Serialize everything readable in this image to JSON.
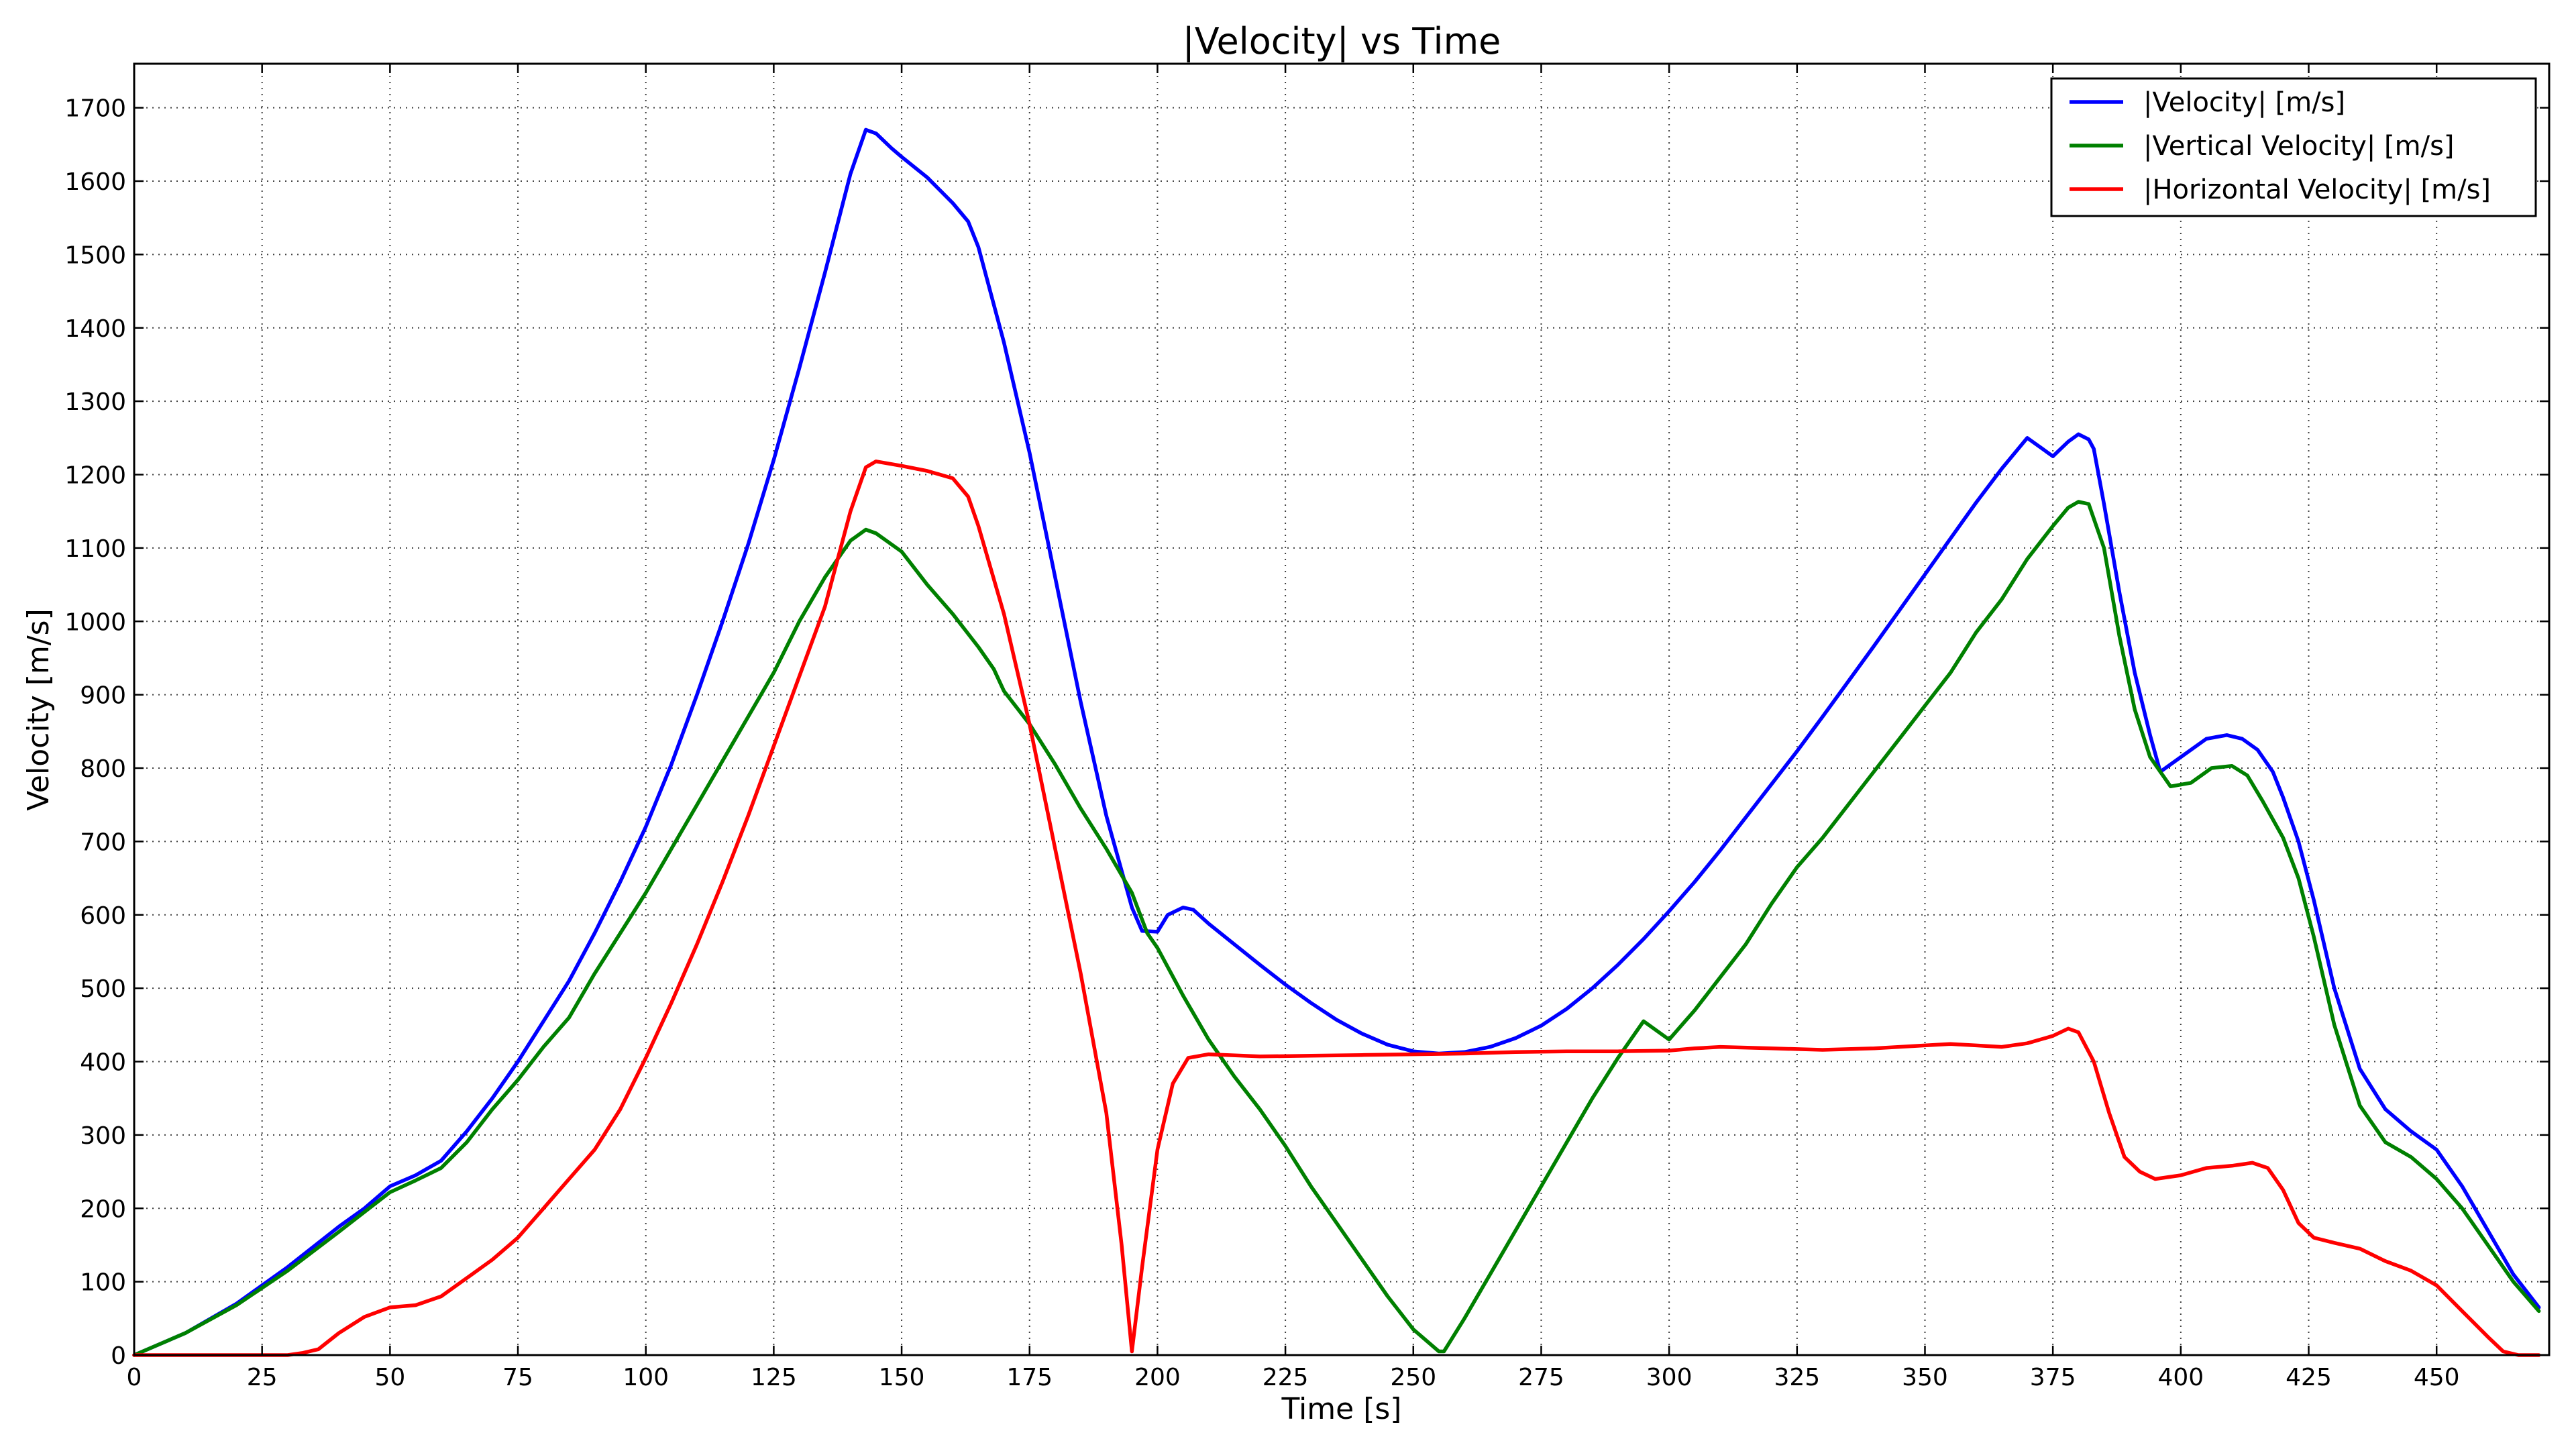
{
  "chart_data": {
    "type": "line",
    "title": "|Velocity| vs Time",
    "xlabel": "Time [s]",
    "ylabel": "Velocity [m/s]",
    "xlim": [
      0,
      472
    ],
    "ylim": [
      0,
      1760
    ],
    "xticks": [
      0,
      25,
      50,
      75,
      100,
      125,
      150,
      175,
      200,
      225,
      250,
      275,
      300,
      325,
      350,
      375,
      400,
      425,
      450
    ],
    "yticks": [
      0,
      100,
      200,
      300,
      400,
      500,
      600,
      700,
      800,
      900,
      1000,
      1100,
      1200,
      1300,
      1400,
      1500,
      1600,
      1700
    ],
    "grid": true,
    "legend_position": "top-right",
    "series": [
      {
        "name": "|Velocity| [m/s]",
        "color": "#0000ff",
        "points": [
          [
            0,
            0
          ],
          [
            10,
            30
          ],
          [
            20,
            70
          ],
          [
            30,
            120
          ],
          [
            40,
            175
          ],
          [
            45,
            200
          ],
          [
            50,
            230
          ],
          [
            55,
            245
          ],
          [
            60,
            265
          ],
          [
            65,
            305
          ],
          [
            70,
            350
          ],
          [
            75,
            400
          ],
          [
            80,
            455
          ],
          [
            85,
            510
          ],
          [
            90,
            575
          ],
          [
            95,
            645
          ],
          [
            100,
            720
          ],
          [
            105,
            805
          ],
          [
            110,
            900
          ],
          [
            115,
            1000
          ],
          [
            120,
            1105
          ],
          [
            125,
            1220
          ],
          [
            130,
            1345
          ],
          [
            135,
            1475
          ],
          [
            140,
            1610
          ],
          [
            143,
            1670
          ],
          [
            145,
            1665
          ],
          [
            148,
            1645
          ],
          [
            150,
            1633
          ],
          [
            155,
            1605
          ],
          [
            160,
            1570
          ],
          [
            163,
            1545
          ],
          [
            165,
            1510
          ],
          [
            170,
            1380
          ],
          [
            175,
            1230
          ],
          [
            180,
            1060
          ],
          [
            185,
            890
          ],
          [
            190,
            735
          ],
          [
            195,
            610
          ],
          [
            197,
            578
          ],
          [
            200,
            577
          ],
          [
            202,
            600
          ],
          [
            205,
            610
          ],
          [
            207,
            607
          ],
          [
            210,
            588
          ],
          [
            215,
            560
          ],
          [
            220,
            532
          ],
          [
            225,
            505
          ],
          [
            230,
            480
          ],
          [
            235,
            457
          ],
          [
            240,
            438
          ],
          [
            245,
            423
          ],
          [
            250,
            414
          ],
          [
            255,
            411
          ],
          [
            260,
            413
          ],
          [
            265,
            420
          ],
          [
            270,
            432
          ],
          [
            275,
            449
          ],
          [
            280,
            472
          ],
          [
            285,
            500
          ],
          [
            290,
            532
          ],
          [
            295,
            567
          ],
          [
            300,
            605
          ],
          [
            305,
            645
          ],
          [
            310,
            688
          ],
          [
            315,
            733
          ],
          [
            320,
            778
          ],
          [
            325,
            823
          ],
          [
            330,
            870
          ],
          [
            335,
            918
          ],
          [
            340,
            966
          ],
          [
            345,
            1015
          ],
          [
            350,
            1064
          ],
          [
            355,
            1113
          ],
          [
            360,
            1162
          ],
          [
            365,
            1208
          ],
          [
            370,
            1250
          ],
          [
            375,
            1225
          ],
          [
            378,
            1245
          ],
          [
            380,
            1255
          ],
          [
            382,
            1248
          ],
          [
            383,
            1235
          ],
          [
            385,
            1160
          ],
          [
            388,
            1040
          ],
          [
            391,
            930
          ],
          [
            394,
            845
          ],
          [
            396,
            795
          ],
          [
            400,
            815
          ],
          [
            405,
            840
          ],
          [
            409,
            845
          ],
          [
            412,
            840
          ],
          [
            415,
            825
          ],
          [
            418,
            795
          ],
          [
            420,
            760
          ],
          [
            423,
            700
          ],
          [
            426,
            620
          ],
          [
            430,
            500
          ],
          [
            435,
            390
          ],
          [
            440,
            335
          ],
          [
            445,
            305
          ],
          [
            450,
            280
          ],
          [
            455,
            230
          ],
          [
            460,
            170
          ],
          [
            465,
            110
          ],
          [
            470,
            65
          ]
        ]
      },
      {
        "name": "|Vertical Velocity| [m/s]",
        "color": "#008000",
        "points": [
          [
            0,
            0
          ],
          [
            10,
            30
          ],
          [
            20,
            68
          ],
          [
            30,
            115
          ],
          [
            40,
            168
          ],
          [
            45,
            195
          ],
          [
            50,
            222
          ],
          [
            55,
            238
          ],
          [
            60,
            255
          ],
          [
            65,
            290
          ],
          [
            70,
            335
          ],
          [
            75,
            375
          ],
          [
            80,
            420
          ],
          [
            85,
            460
          ],
          [
            90,
            520
          ],
          [
            95,
            575
          ],
          [
            100,
            630
          ],
          [
            105,
            690
          ],
          [
            110,
            750
          ],
          [
            115,
            810
          ],
          [
            120,
            870
          ],
          [
            125,
            930
          ],
          [
            130,
            1000
          ],
          [
            135,
            1060
          ],
          [
            140,
            1110
          ],
          [
            143,
            1125
          ],
          [
            145,
            1120
          ],
          [
            150,
            1095
          ],
          [
            155,
            1050
          ],
          [
            160,
            1010
          ],
          [
            165,
            965
          ],
          [
            168,
            935
          ],
          [
            170,
            905
          ],
          [
            175,
            860
          ],
          [
            180,
            805
          ],
          [
            185,
            745
          ],
          [
            190,
            690
          ],
          [
            195,
            630
          ],
          [
            198,
            575
          ],
          [
            200,
            555
          ],
          [
            205,
            490
          ],
          [
            210,
            430
          ],
          [
            215,
            380
          ],
          [
            220,
            335
          ],
          [
            225,
            285
          ],
          [
            230,
            230
          ],
          [
            235,
            180
          ],
          [
            240,
            130
          ],
          [
            245,
            80
          ],
          [
            250,
            35
          ],
          [
            255,
            5
          ],
          [
            256,
            5
          ],
          [
            260,
            50
          ],
          [
            265,
            110
          ],
          [
            270,
            170
          ],
          [
            275,
            230
          ],
          [
            280,
            290
          ],
          [
            285,
            350
          ],
          [
            290,
            405
          ],
          [
            295,
            455
          ],
          [
            300,
            430
          ],
          [
            305,
            470
          ],
          [
            310,
            515
          ],
          [
            315,
            560
          ],
          [
            320,
            615
          ],
          [
            325,
            665
          ],
          [
            330,
            705
          ],
          [
            335,
            750
          ],
          [
            340,
            795
          ],
          [
            345,
            840
          ],
          [
            350,
            885
          ],
          [
            355,
            930
          ],
          [
            360,
            985
          ],
          [
            365,
            1030
          ],
          [
            370,
            1085
          ],
          [
            375,
            1130
          ],
          [
            378,
            1155
          ],
          [
            380,
            1163
          ],
          [
            382,
            1160
          ],
          [
            385,
            1100
          ],
          [
            388,
            980
          ],
          [
            391,
            880
          ],
          [
            394,
            815
          ],
          [
            398,
            775
          ],
          [
            402,
            780
          ],
          [
            406,
            800
          ],
          [
            410,
            803
          ],
          [
            413,
            790
          ],
          [
            416,
            755
          ],
          [
            420,
            705
          ],
          [
            423,
            650
          ],
          [
            426,
            570
          ],
          [
            430,
            450
          ],
          [
            435,
            340
          ],
          [
            440,
            290
          ],
          [
            445,
            270
          ],
          [
            450,
            240
          ],
          [
            455,
            200
          ],
          [
            460,
            150
          ],
          [
            465,
            100
          ],
          [
            470,
            60
          ]
        ]
      },
      {
        "name": "|Horizontal Velocity| [m/s]",
        "color": "#ff0000",
        "points": [
          [
            0,
            0
          ],
          [
            10,
            0
          ],
          [
            20,
            0
          ],
          [
            30,
            0
          ],
          [
            33,
            3
          ],
          [
            36,
            8
          ],
          [
            40,
            30
          ],
          [
            45,
            52
          ],
          [
            50,
            65
          ],
          [
            55,
            68
          ],
          [
            60,
            80
          ],
          [
            65,
            105
          ],
          [
            70,
            130
          ],
          [
            75,
            160
          ],
          [
            80,
            200
          ],
          [
            85,
            240
          ],
          [
            90,
            280
          ],
          [
            95,
            335
          ],
          [
            100,
            405
          ],
          [
            105,
            480
          ],
          [
            110,
            560
          ],
          [
            115,
            645
          ],
          [
            120,
            735
          ],
          [
            125,
            830
          ],
          [
            130,
            925
          ],
          [
            135,
            1020
          ],
          [
            140,
            1150
          ],
          [
            143,
            1210
          ],
          [
            145,
            1218
          ],
          [
            150,
            1212
          ],
          [
            155,
            1205
          ],
          [
            160,
            1195
          ],
          [
            163,
            1170
          ],
          [
            165,
            1130
          ],
          [
            170,
            1010
          ],
          [
            175,
            860
          ],
          [
            180,
            690
          ],
          [
            185,
            520
          ],
          [
            190,
            330
          ],
          [
            193,
            150
          ],
          [
            195,
            5
          ],
          [
            197,
            120
          ],
          [
            200,
            280
          ],
          [
            203,
            370
          ],
          [
            206,
            405
          ],
          [
            210,
            410
          ],
          [
            220,
            407
          ],
          [
            230,
            408
          ],
          [
            240,
            409
          ],
          [
            250,
            410
          ],
          [
            260,
            411
          ],
          [
            270,
            413
          ],
          [
            280,
            414
          ],
          [
            290,
            414
          ],
          [
            300,
            415
          ],
          [
            305,
            418
          ],
          [
            310,
            420
          ],
          [
            320,
            418
          ],
          [
            330,
            416
          ],
          [
            340,
            418
          ],
          [
            350,
            422
          ],
          [
            355,
            424
          ],
          [
            360,
            422
          ],
          [
            365,
            420
          ],
          [
            370,
            425
          ],
          [
            375,
            435
          ],
          [
            378,
            445
          ],
          [
            380,
            440
          ],
          [
            383,
            400
          ],
          [
            386,
            330
          ],
          [
            389,
            270
          ],
          [
            392,
            250
          ],
          [
            395,
            240
          ],
          [
            400,
            245
          ],
          [
            405,
            255
          ],
          [
            410,
            258
          ],
          [
            414,
            262
          ],
          [
            417,
            255
          ],
          [
            420,
            225
          ],
          [
            423,
            180
          ],
          [
            426,
            160
          ],
          [
            430,
            153
          ],
          [
            435,
            145
          ],
          [
            440,
            128
          ],
          [
            445,
            115
          ],
          [
            450,
            95
          ],
          [
            455,
            60
          ],
          [
            460,
            25
          ],
          [
            463,
            5
          ],
          [
            466,
            0
          ],
          [
            470,
            0
          ]
        ]
      }
    ]
  }
}
